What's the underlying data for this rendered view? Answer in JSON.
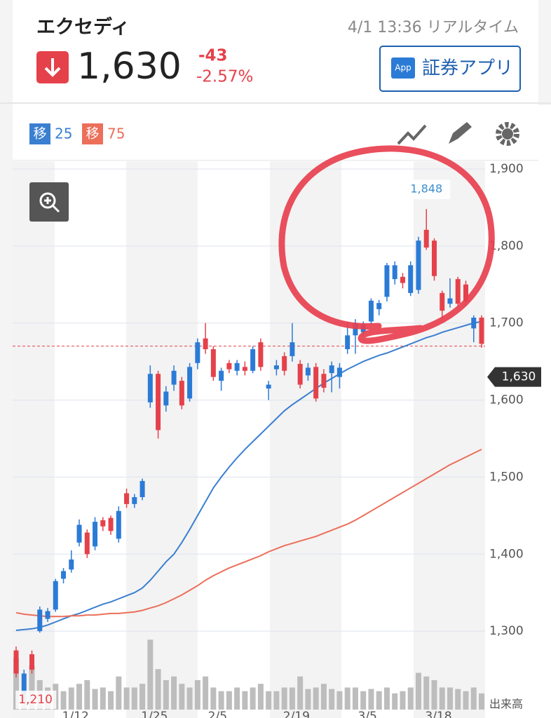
{
  "header": {
    "name": "エクセディ",
    "timestamp": "4/1 13:36 リアルタイム",
    "price": "1,630",
    "change": "-43",
    "change_percent": "-2.57%",
    "app_badge": "App",
    "app_button": "証券アプリ"
  },
  "chart_data": {
    "type": "candlestick",
    "x": [
      null,
      null,
      null,
      null,
      null,
      null,
      null,
      "1/12",
      null,
      null,
      null,
      null,
      null,
      null,
      null,
      null,
      null,
      "1/25",
      null,
      null,
      null,
      null,
      null,
      null,
      null,
      "2/5",
      null,
      null,
      null,
      null,
      null,
      null,
      null,
      null,
      null,
      "2/19",
      null,
      null,
      null,
      null,
      null,
      null,
      null,
      null,
      "3/5",
      null,
      null,
      null,
      null,
      null,
      null,
      null,
      null,
      "3/18",
      null,
      null,
      null,
      null,
      null,
      null
    ],
    "open": [
      1275,
      1220,
      1270,
      1300,
      1316,
      1328,
      1368,
      1380,
      1415,
      1428,
      1410,
      1444,
      1447,
      1420,
      1479,
      1465,
      1474,
      1597,
      1634,
      1593,
      1620,
      1625,
      1602,
      1648,
      1680,
      1666,
      1625,
      1648,
      1638,
      1643,
      1638,
      1675,
      1615,
      1640,
      1657,
      1657,
      1647,
      1632,
      1643,
      1634,
      1635,
      1630,
      1666,
      1684,
      1688,
      1702,
      1718,
      1734,
      1757,
      1760,
      1739,
      1743,
      1821,
      1807,
      1739,
      1725,
      1757,
      1750,
      1693,
      1707
    ],
    "close": [
      1245,
      1245,
      1250,
      1328,
      1326,
      1365,
      1378,
      1393,
      1438,
      1400,
      1442,
      1436,
      1430,
      1456,
      1465,
      1474,
      1495,
      1634,
      1561,
      1611,
      1638,
      1593,
      1643,
      1675,
      1666,
      1630,
      1638,
      1640,
      1648,
      1638,
      1666,
      1643,
      1620,
      1645,
      1638,
      1675,
      1620,
      1642,
      1602,
      1616,
      1645,
      1642,
      1684,
      1700,
      1698,
      1729,
      1726,
      1775,
      1775,
      1752,
      1775,
      1807,
      1798,
      1761,
      1716,
      1732,
      1725,
      1728,
      1707,
      1673
    ],
    "high": [
      1280,
      1250,
      1275,
      1332,
      1330,
      1368,
      1382,
      1405,
      1445,
      1432,
      1448,
      1448,
      1450,
      1462,
      1485,
      1478,
      1498,
      1645,
      1638,
      1618,
      1645,
      1630,
      1648,
      1680,
      1700,
      1670,
      1642,
      1652,
      1652,
      1650,
      1670,
      1680,
      1625,
      1652,
      1662,
      1700,
      1652,
      1648,
      1648,
      1640,
      1650,
      1648,
      1700,
      1705,
      1702,
      1732,
      1730,
      1778,
      1780,
      1765,
      1780,
      1812,
      1848,
      1810,
      1742,
      1758,
      1760,
      1755,
      1710,
      1710
    ],
    "low": [
      1240,
      1210,
      1245,
      1298,
      1312,
      1325,
      1362,
      1376,
      1410,
      1395,
      1405,
      1430,
      1425,
      1415,
      1460,
      1460,
      1470,
      1590,
      1550,
      1585,
      1612,
      1588,
      1598,
      1640,
      1660,
      1625,
      1612,
      1635,
      1632,
      1632,
      1635,
      1638,
      1600,
      1632,
      1632,
      1650,
      1615,
      1625,
      1598,
      1610,
      1610,
      1615,
      1660,
      1660,
      1682,
      1698,
      1710,
      1728,
      1750,
      1745,
      1735,
      1738,
      1795,
      1755,
      1705,
      1720,
      1720,
      1722,
      1675,
      1668
    ],
    "up_color": "#2b7bd6",
    "down_color": "#e5414a",
    "volume": {
      "name": "出来高",
      "color": "#bdbdbd",
      "values": [
        70,
        25,
        60,
        40,
        30,
        35,
        25,
        30,
        35,
        40,
        28,
        30,
        25,
        45,
        30,
        30,
        35,
        95,
        55,
        40,
        45,
        35,
        30,
        40,
        45,
        30,
        25,
        25,
        30,
        25,
        30,
        35,
        25,
        25,
        30,
        30,
        45,
        28,
        30,
        35,
        28,
        25,
        30,
        30,
        25,
        28,
        25,
        30,
        22,
        25,
        30,
        50,
        45,
        40,
        30,
        30,
        28,
        25,
        30,
        22
      ]
    },
    "series": [
      {
        "name": "25",
        "tag": "移",
        "color": "#3a7fd0",
        "values": [
          1301,
          1302,
          1303,
          1305,
          1308,
          1312,
          1316,
          1320,
          1323,
          1327,
          1331,
          1335,
          1338,
          1342,
          1346,
          1350,
          1356,
          1366,
          1378,
          1390,
          1400,
          1415,
          1432,
          1450,
          1468,
          1486,
          1500,
          1513,
          1525,
          1536,
          1546,
          1556,
          1566,
          1576,
          1586,
          1594,
          1601,
          1608,
          1615,
          1622,
          1628,
          1634,
          1640,
          1645,
          1650,
          1654,
          1658,
          1661,
          1665,
          1669,
          1673,
          1677,
          1681,
          1684,
          1688,
          1691,
          1694,
          1697,
          1700,
          1702
        ]
      },
      {
        "name": "75",
        "tag": "移",
        "color": "#ec6f5a",
        "values": [
          1324,
          1322,
          1321,
          1320,
          1319,
          1319,
          1319,
          1320,
          1320,
          1321,
          1321,
          1322,
          1323,
          1323,
          1324,
          1325,
          1327,
          1330,
          1333,
          1337,
          1342,
          1347,
          1353,
          1359,
          1366,
          1372,
          1377,
          1382,
          1386,
          1390,
          1394,
          1398,
          1403,
          1407,
          1411,
          1414,
          1417,
          1420,
          1423,
          1427,
          1431,
          1435,
          1439,
          1444,
          1450,
          1456,
          1462,
          1468,
          1474,
          1480,
          1486,
          1492,
          1498,
          1504,
          1510,
          1516,
          1521,
          1526,
          1531,
          1536
        ]
      }
    ],
    "ylim": [
      1200,
      1910
    ],
    "yticks": [
      {
        "value": 1300,
        "label": "1,300"
      },
      {
        "value": 1400,
        "label": "1,400"
      },
      {
        "value": 1500,
        "label": "1,500"
      },
      {
        "value": 1600,
        "label": "1,600"
      },
      {
        "value": 1700,
        "label": "1,700"
      },
      {
        "value": 1800,
        "label": "1,800"
      },
      {
        "value": 1900,
        "label": "1,900"
      }
    ],
    "grid": true,
    "high_label": {
      "value": 1848,
      "label": "1,848"
    },
    "low_label": {
      "value": 1210,
      "label": "1,210"
    },
    "reference_line": 1670,
    "last_price": {
      "value": 1630,
      "label": "1,630"
    }
  }
}
